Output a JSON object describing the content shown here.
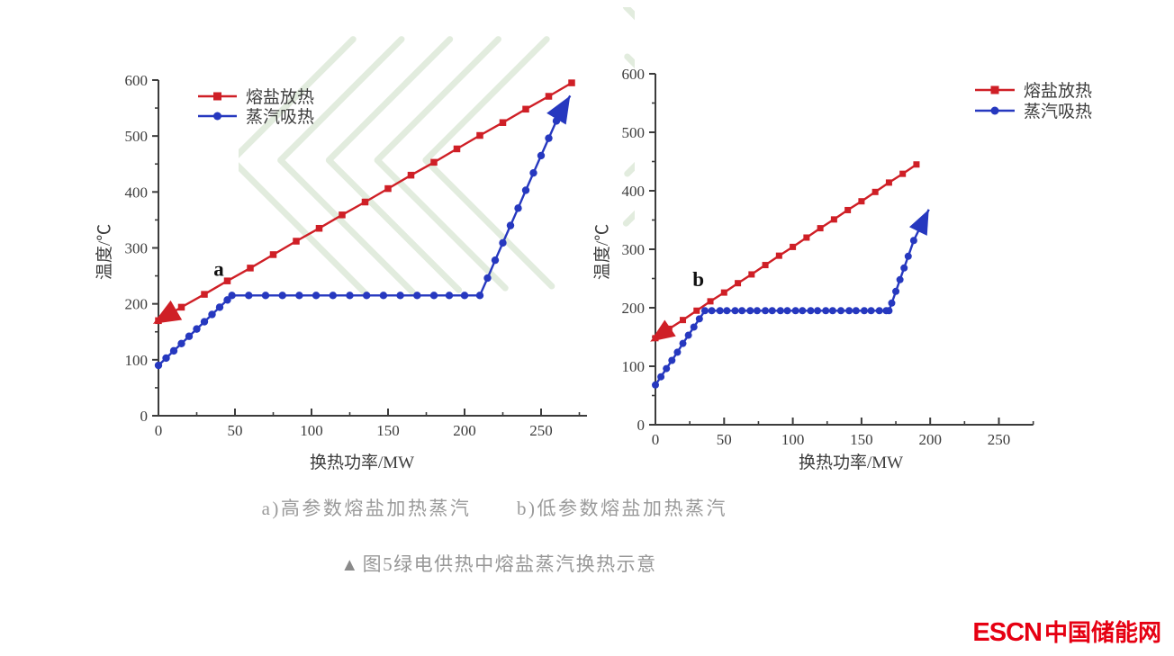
{
  "figure": {
    "caption_a": "a)高参数熔盐加热蒸汽",
    "caption_b": "b)低参数熔盐加热蒸汽",
    "title_marker": "▲",
    "title": "图5绿电供热中熔盐蒸汽换热示意",
    "logo": {
      "latin": "ESCN",
      "cjk": "中国储能网",
      "color": "#e60012"
    }
  },
  "colors": {
    "molten_salt_red": "#cf1f26",
    "steam_blue": "#2638bf",
    "axis": "#3c3c3c",
    "caption_gray": "#9a9a9a",
    "watermark_green": "#dfeadb",
    "background": "#ffffff"
  },
  "chart_data": [
    {
      "id": "a",
      "type": "line",
      "title": "",
      "xlabel": "换热功率/MW",
      "ylabel": "温度/℃",
      "xlim": [
        0,
        280
      ],
      "ylim": [
        0,
        600
      ],
      "xticks": [
        0,
        50,
        100,
        150,
        200,
        250
      ],
      "yticks": [
        0,
        100,
        200,
        300,
        400,
        500,
        600
      ],
      "x_minor_step": 25,
      "y_minor_step": 50,
      "grid": false,
      "legend_position": "top-left",
      "annotation": {
        "text": "a",
        "x": 36,
        "y": 250
      },
      "series": [
        {
          "name": "熔盐放热",
          "color": "#cf1f26",
          "marker": "square",
          "arrow": "start",
          "points": [
            [
              0,
              170
            ],
            [
              15,
              194
            ],
            [
              30,
              217
            ],
            [
              45,
              241
            ],
            [
              60,
              264
            ],
            [
              75,
              288
            ],
            [
              90,
              312
            ],
            [
              105,
              335
            ],
            [
              120,
              359
            ],
            [
              135,
              382
            ],
            [
              150,
              406
            ],
            [
              165,
              430
            ],
            [
              180,
              453
            ],
            [
              195,
              477
            ],
            [
              210,
              501
            ],
            [
              225,
              524
            ],
            [
              240,
              548
            ],
            [
              255,
              571
            ],
            [
              270,
              595
            ]
          ]
        },
        {
          "name": "蒸汽吸热",
          "color": "#2638bf",
          "marker": "circle",
          "arrow": "end",
          "arrow_tip": [
            269,
            572
          ],
          "points": [
            [
              0,
              90
            ],
            [
              5,
              103
            ],
            [
              10,
              116
            ],
            [
              15,
              129
            ],
            [
              20,
              142
            ],
            [
              25,
              155
            ],
            [
              30,
              168
            ],
            [
              35,
              181
            ],
            [
              40,
              194
            ],
            [
              45,
              207
            ],
            [
              48,
              215
            ],
            [
              59,
              215
            ],
            [
              70,
              215
            ],
            [
              81,
              215
            ],
            [
              92,
              215
            ],
            [
              103,
              215
            ],
            [
              114,
              215
            ],
            [
              125,
              215
            ],
            [
              136,
              215
            ],
            [
              147,
              215
            ],
            [
              158,
              215
            ],
            [
              169,
              215
            ],
            [
              180,
              215
            ],
            [
              190,
              215
            ],
            [
              200,
              215
            ],
            [
              210,
              215
            ],
            [
              215,
              246
            ],
            [
              220,
              278
            ],
            [
              225,
              309
            ],
            [
              230,
              340
            ],
            [
              235,
              371
            ],
            [
              240,
              403
            ],
            [
              245,
              434
            ],
            [
              250,
              465
            ],
            [
              255,
              496
            ],
            [
              260,
              527
            ],
            [
              262,
              540
            ]
          ]
        }
      ]
    },
    {
      "id": "b",
      "type": "line",
      "title": "",
      "xlabel": "换热功率/MW",
      "ylabel": "温度/℃",
      "xlim": [
        0,
        275
      ],
      "ylim": [
        0,
        600
      ],
      "xticks": [
        0,
        50,
        100,
        150,
        200,
        250
      ],
      "yticks": [
        0,
        100,
        200,
        300,
        400,
        500,
        600
      ],
      "x_minor_step": 25,
      "y_minor_step": 50,
      "grid": false,
      "legend_position": "top-right",
      "annotation": {
        "text": "b",
        "x": 27,
        "y": 237
      },
      "series": [
        {
          "name": "熔盐放热",
          "color": "#cf1f26",
          "marker": "square",
          "arrow": "start",
          "points": [
            [
              0,
              148
            ],
            [
              10,
              164
            ],
            [
              20,
              179
            ],
            [
              30,
              195
            ],
            [
              40,
              211
            ],
            [
              50,
              226
            ],
            [
              60,
              242
            ],
            [
              70,
              257
            ],
            [
              80,
              273
            ],
            [
              90,
              289
            ],
            [
              100,
              304
            ],
            [
              110,
              320
            ],
            [
              120,
              336
            ],
            [
              130,
              351
            ],
            [
              140,
              367
            ],
            [
              150,
              382
            ],
            [
              160,
              398
            ],
            [
              170,
              414
            ],
            [
              180,
              429
            ],
            [
              190,
              445
            ]
          ]
        },
        {
          "name": "蒸汽吸热",
          "color": "#2638bf",
          "marker": "circle",
          "arrow": "end",
          "arrow_tip": [
            199,
            368
          ],
          "points": [
            [
              0,
              68
            ],
            [
              4,
              82
            ],
            [
              8,
              96
            ],
            [
              12,
              110
            ],
            [
              16,
              124
            ],
            [
              20,
              139
            ],
            [
              24,
              153
            ],
            [
              28,
              167
            ],
            [
              32,
              181
            ],
            [
              36,
              195
            ],
            [
              41,
              195
            ],
            [
              47,
              195
            ],
            [
              52,
              195
            ],
            [
              58,
              195
            ],
            [
              63,
              195
            ],
            [
              69,
              195
            ],
            [
              74,
              195
            ],
            [
              80,
              195
            ],
            [
              85,
              195
            ],
            [
              91,
              195
            ],
            [
              96,
              195
            ],
            [
              102,
              195
            ],
            [
              107,
              195
            ],
            [
              113,
              195
            ],
            [
              118,
              195
            ],
            [
              124,
              195
            ],
            [
              129,
              195
            ],
            [
              135,
              195
            ],
            [
              141,
              195
            ],
            [
              146,
              195
            ],
            [
              152,
              195
            ],
            [
              157,
              195
            ],
            [
              163,
              195
            ],
            [
              168,
              195
            ],
            [
              170,
              195
            ],
            [
              172,
              208
            ],
            [
              175,
              228
            ],
            [
              178,
              248
            ],
            [
              181,
              268
            ],
            [
              184,
              288
            ],
            [
              188,
              315
            ]
          ]
        }
      ]
    }
  ]
}
